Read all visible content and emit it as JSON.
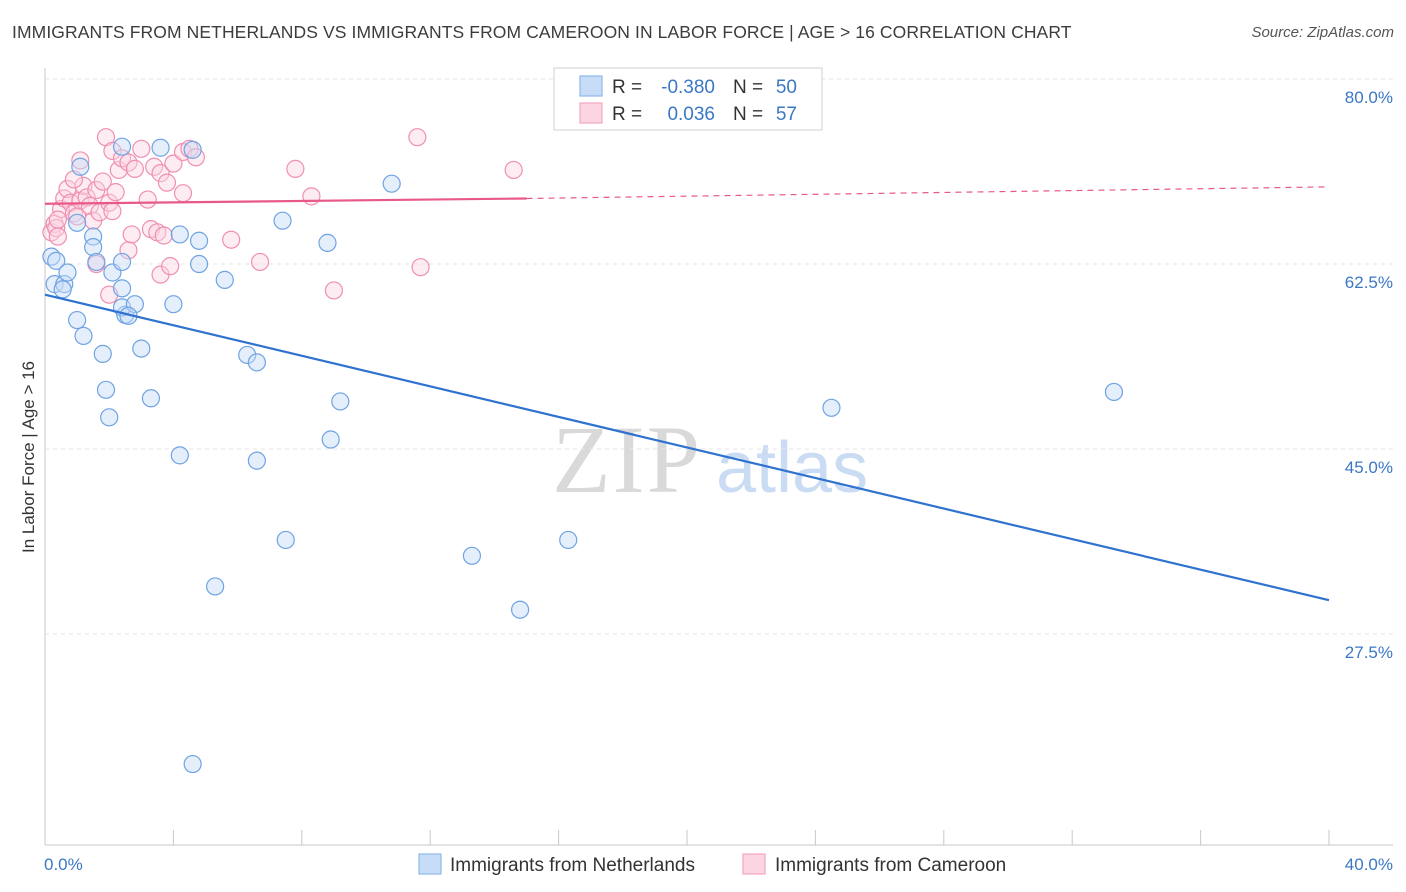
{
  "title": "IMMIGRANTS FROM NETHERLANDS VS IMMIGRANTS FROM CAMEROON IN LABOR FORCE | AGE > 16 CORRELATION CHART",
  "source": "Source: ZipAtlas.com",
  "watermark": {
    "zip": "ZIP",
    "atlas": "atlas"
  },
  "chart_data": {
    "type": "scatter",
    "title": "IMMIGRANTS FROM NETHERLANDS VS IMMIGRANTS FROM CAMEROON IN LABOR FORCE | AGE > 16 CORRELATION CHART",
    "xlabel": "",
    "ylabel": "In Labor Force | Age > 16",
    "xlim": [
      0,
      40
    ],
    "ylim": [
      10,
      82.5
    ],
    "x_ticks": [
      "0.0%",
      "40.0%"
    ],
    "y_ticks": [
      {
        "value": 80,
        "label": "80.0%"
      },
      {
        "value": 62.5,
        "label": "62.5%"
      },
      {
        "value": 45,
        "label": "45.0%"
      },
      {
        "value": 27.5,
        "label": "27.5%"
      }
    ],
    "legend": {
      "r_label": "R =",
      "n_label": "N =",
      "rows": [
        {
          "r": "-0.380",
          "n": "50",
          "color": "#8fb8ea"
        },
        {
          "r": "0.036",
          "n": "57",
          "color": "#f3a6c1"
        }
      ]
    },
    "series": [
      {
        "name": "Immigrants from Netherlands",
        "color": "#6fa3e3",
        "line_color": "#2f72cf",
        "trend": {
          "x": [
            0,
            40
          ],
          "y": [
            61.3,
            32.4
          ],
          "dashed_from": null
        },
        "points": [
          [
            0.2,
            64.9
          ],
          [
            0.35,
            64.5
          ],
          [
            0.3,
            62.3
          ],
          [
            0.6,
            62.3
          ],
          [
            0.7,
            63.4
          ],
          [
            0.55,
            61.8
          ],
          [
            1.1,
            73.4
          ],
          [
            1.0,
            68.1
          ],
          [
            1.5,
            66.8
          ],
          [
            1.5,
            65.8
          ],
          [
            2.1,
            63.4
          ],
          [
            1.0,
            58.9
          ],
          [
            1.6,
            64.4
          ],
          [
            2.4,
            64.4
          ],
          [
            2.4,
            61.9
          ],
          [
            1.2,
            57.4
          ],
          [
            2.5,
            59.4
          ],
          [
            2.4,
            60.1
          ],
          [
            2.8,
            60.4
          ],
          [
            2.6,
            59.3
          ],
          [
            3.0,
            56.2
          ],
          [
            4.0,
            60.4
          ],
          [
            4.2,
            67.0
          ],
          [
            4.8,
            66.4
          ],
          [
            4.8,
            64.2
          ],
          [
            5.6,
            62.7
          ],
          [
            6.3,
            55.6
          ],
          [
            6.6,
            54.9
          ],
          [
            7.4,
            68.3
          ],
          [
            8.8,
            66.2
          ],
          [
            10.8,
            71.8
          ],
          [
            1.8,
            55.7
          ],
          [
            1.9,
            52.3
          ],
          [
            2.0,
            49.7
          ],
          [
            3.3,
            51.5
          ],
          [
            4.2,
            46.1
          ],
          [
            6.6,
            45.6
          ],
          [
            9.2,
            51.2
          ],
          [
            8.9,
            47.6
          ],
          [
            7.5,
            38.1
          ],
          [
            5.3,
            33.7
          ],
          [
            13.3,
            36.6
          ],
          [
            14.8,
            31.5
          ],
          [
            16.3,
            38.1
          ],
          [
            3.6,
            75.2
          ],
          [
            4.6,
            75.0
          ],
          [
            2.4,
            75.3
          ],
          [
            24.5,
            50.6
          ],
          [
            33.3,
            52.1
          ],
          [
            4.6,
            16.9
          ]
        ]
      },
      {
        "name": "Immigrants from Cameroon",
        "color": "#f3a6c1",
        "line_color": "#e8588a",
        "trend": {
          "x": [
            0,
            15,
            40
          ],
          "y": [
            69.9,
            70.4,
            71.5
          ],
          "dashed_from": 15
        },
        "points": [
          [
            0.2,
            67.2
          ],
          [
            0.3,
            68.0
          ],
          [
            0.35,
            67.6
          ],
          [
            0.4,
            66.8
          ],
          [
            0.5,
            69.4
          ],
          [
            0.6,
            70.4
          ],
          [
            0.7,
            71.3
          ],
          [
            0.8,
            70.0
          ],
          [
            0.9,
            69.0
          ],
          [
            1.0,
            68.7
          ],
          [
            1.1,
            70.2
          ],
          [
            1.2,
            71.6
          ],
          [
            1.3,
            70.5
          ],
          [
            1.4,
            69.7
          ],
          [
            1.5,
            68.3
          ],
          [
            1.6,
            71.2
          ],
          [
            1.7,
            69.1
          ],
          [
            1.8,
            72.0
          ],
          [
            2.0,
            70.0
          ],
          [
            2.1,
            69.2
          ],
          [
            2.2,
            71.0
          ],
          [
            1.9,
            76.2
          ],
          [
            2.1,
            74.9
          ],
          [
            2.3,
            73.1
          ],
          [
            2.4,
            74.2
          ],
          [
            2.6,
            73.8
          ],
          [
            2.8,
            73.2
          ],
          [
            3.0,
            75.1
          ],
          [
            3.2,
            70.3
          ],
          [
            3.4,
            73.4
          ],
          [
            3.6,
            72.8
          ],
          [
            3.8,
            71.9
          ],
          [
            4.0,
            73.7
          ],
          [
            4.3,
            74.8
          ],
          [
            4.5,
            75.1
          ],
          [
            4.7,
            74.3
          ],
          [
            3.3,
            67.5
          ],
          [
            3.5,
            67.2
          ],
          [
            3.7,
            66.9
          ],
          [
            2.6,
            65.5
          ],
          [
            1.6,
            64.2
          ],
          [
            2.0,
            61.3
          ],
          [
            3.6,
            63.2
          ],
          [
            3.9,
            64.0
          ],
          [
            4.3,
            70.9
          ],
          [
            5.8,
            66.5
          ],
          [
            6.7,
            64.4
          ],
          [
            7.8,
            73.2
          ],
          [
            8.3,
            70.6
          ],
          [
            9.0,
            61.7
          ],
          [
            11.6,
            76.2
          ],
          [
            11.7,
            63.9
          ],
          [
            14.6,
            73.1
          ],
          [
            0.9,
            72.2
          ],
          [
            1.1,
            74.0
          ],
          [
            2.7,
            67.0
          ],
          [
            0.4,
            68.4
          ]
        ]
      }
    ]
  }
}
